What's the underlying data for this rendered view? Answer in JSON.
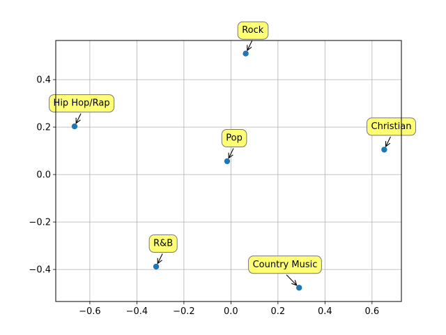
{
  "chart_data": {
    "type": "scatter",
    "title": "",
    "xlabel": "",
    "ylabel": "",
    "xlim": [
      -0.745,
      0.725
    ],
    "ylim": [
      -0.535,
      0.565
    ],
    "grid": true,
    "xticks": [
      -0.6,
      -0.4,
      -0.2,
      0.0,
      0.2,
      0.4,
      0.6
    ],
    "yticks": [
      -0.4,
      -0.2,
      0.0,
      0.2,
      0.4
    ],
    "xtick_labels": [
      "−0.6",
      "−0.4",
      "−0.2",
      "0.0",
      "0.2",
      "0.4",
      "0.6"
    ],
    "ytick_labels": [
      "−0.4",
      "−0.2",
      "0.0",
      "0.2",
      "0.4"
    ],
    "marker_color": "#1f77b4",
    "annotation_box_color": "#ffff66",
    "points": [
      {
        "label": "Rock",
        "x": 0.063,
        "y": 0.51,
        "text_x": 0.093,
        "text_y": 0.61
      },
      {
        "label": "Hip Hop/Rap",
        "x": -0.665,
        "y": 0.203,
        "text_x": -0.635,
        "text_y": 0.303
      },
      {
        "label": "Christian",
        "x": 0.652,
        "y": 0.105,
        "text_x": 0.682,
        "text_y": 0.205
      },
      {
        "label": "Pop",
        "x": -0.016,
        "y": 0.056,
        "text_x": 0.014,
        "text_y": 0.156
      },
      {
        "label": "R&B",
        "x": -0.318,
        "y": -0.388,
        "text_x": -0.288,
        "text_y": -0.288
      },
      {
        "label": "Country Music",
        "x": 0.29,
        "y": -0.477,
        "text_x": 0.23,
        "text_y": -0.377
      }
    ]
  }
}
